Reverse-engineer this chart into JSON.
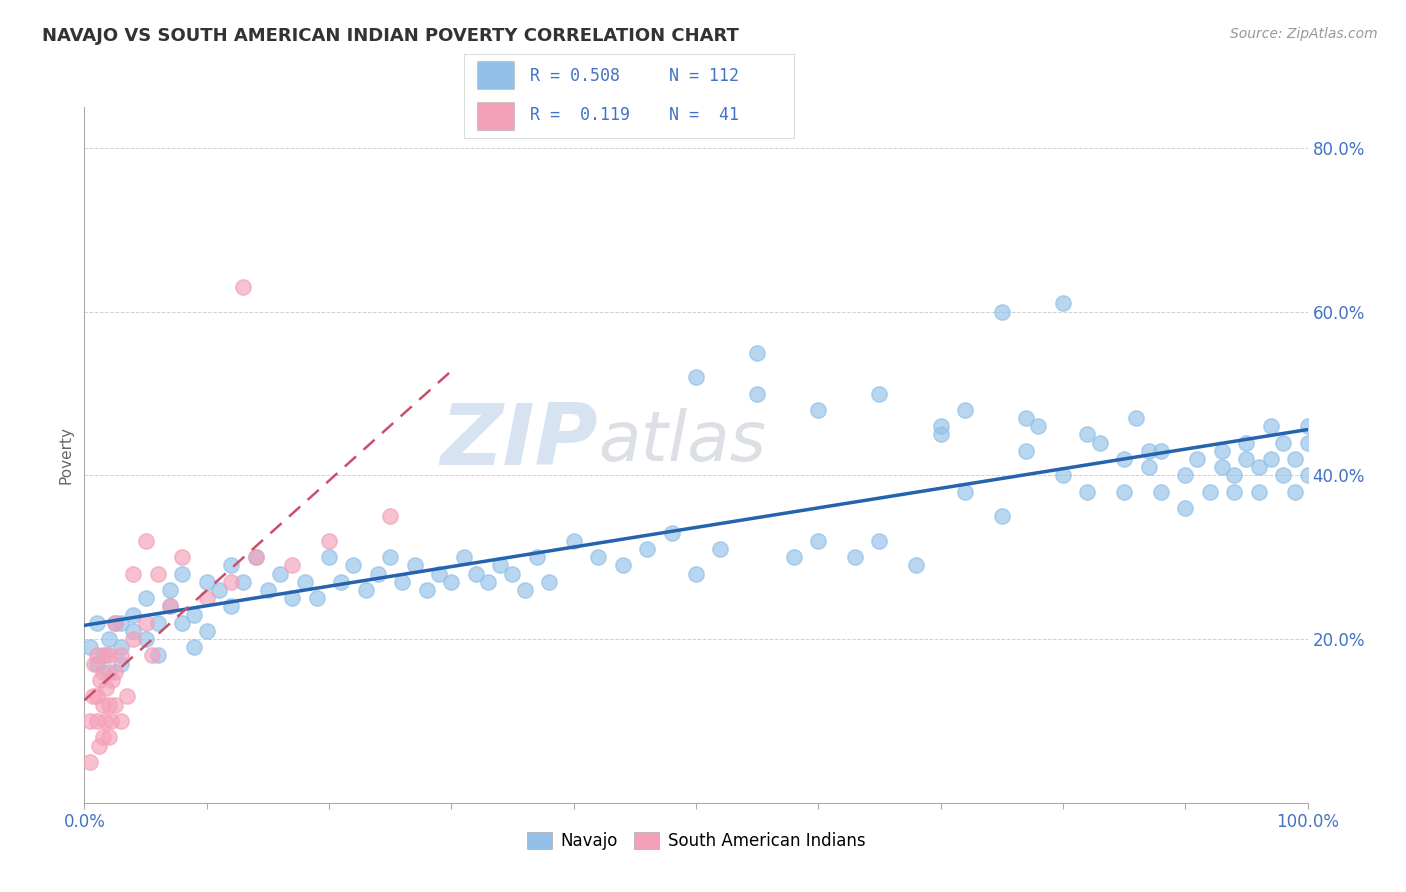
{
  "title": "NAVAJO VS SOUTH AMERICAN INDIAN POVERTY CORRELATION CHART",
  "source": "Source: ZipAtlas.com",
  "ylabel": "Poverty",
  "xlim": [
    0.0,
    1.0
  ],
  "ylim": [
    0.0,
    0.85
  ],
  "navajo_color": "#92C0E8",
  "south_american_color": "#F4A0B8",
  "navajo_R": 0.508,
  "navajo_N": 112,
  "south_american_R": 0.119,
  "south_american_N": 41,
  "trend_navajo_color": "#2563AE",
  "trend_south_american_color": "#C8506A",
  "background_color": "#ffffff",
  "watermark_color": "#C8D8EC",
  "tick_color": "#4472C4",
  "navajo_x": [
    0.005,
    0.01,
    0.01,
    0.015,
    0.02,
    0.02,
    0.025,
    0.03,
    0.03,
    0.03,
    0.04,
    0.04,
    0.05,
    0.05,
    0.06,
    0.06,
    0.07,
    0.07,
    0.08,
    0.08,
    0.09,
    0.09,
    0.1,
    0.1,
    0.11,
    0.12,
    0.12,
    0.13,
    0.14,
    0.15,
    0.16,
    0.17,
    0.18,
    0.19,
    0.2,
    0.21,
    0.22,
    0.23,
    0.24,
    0.25,
    0.26,
    0.27,
    0.28,
    0.29,
    0.3,
    0.31,
    0.32,
    0.33,
    0.34,
    0.35,
    0.36,
    0.37,
    0.38,
    0.4,
    0.42,
    0.44,
    0.46,
    0.48,
    0.5,
    0.52,
    0.55,
    0.58,
    0.6,
    0.63,
    0.65,
    0.68,
    0.7,
    0.72,
    0.75,
    0.77,
    0.78,
    0.8,
    0.82,
    0.83,
    0.85,
    0.85,
    0.87,
    0.88,
    0.88,
    0.9,
    0.9,
    0.91,
    0.92,
    0.93,
    0.93,
    0.94,
    0.94,
    0.95,
    0.95,
    0.96,
    0.96,
    0.97,
    0.97,
    0.98,
    0.98,
    0.99,
    0.99,
    1.0,
    1.0,
    1.0,
    0.75,
    0.8,
    0.55,
    0.5,
    0.6,
    0.65,
    0.7,
    0.72,
    0.77,
    0.82,
    0.86,
    0.87
  ],
  "navajo_y": [
    0.19,
    0.17,
    0.22,
    0.18,
    0.2,
    0.16,
    0.22,
    0.19,
    0.22,
    0.17,
    0.21,
    0.23,
    0.2,
    0.25,
    0.22,
    0.18,
    0.24,
    0.26,
    0.22,
    0.28,
    0.23,
    0.19,
    0.27,
    0.21,
    0.26,
    0.29,
    0.24,
    0.27,
    0.3,
    0.26,
    0.28,
    0.25,
    0.27,
    0.25,
    0.3,
    0.27,
    0.29,
    0.26,
    0.28,
    0.3,
    0.27,
    0.29,
    0.26,
    0.28,
    0.27,
    0.3,
    0.28,
    0.27,
    0.29,
    0.28,
    0.26,
    0.3,
    0.27,
    0.32,
    0.3,
    0.29,
    0.31,
    0.33,
    0.28,
    0.31,
    0.5,
    0.3,
    0.32,
    0.3,
    0.32,
    0.29,
    0.45,
    0.38,
    0.35,
    0.43,
    0.46,
    0.4,
    0.38,
    0.44,
    0.38,
    0.42,
    0.41,
    0.43,
    0.38,
    0.4,
    0.36,
    0.42,
    0.38,
    0.41,
    0.43,
    0.4,
    0.38,
    0.42,
    0.44,
    0.41,
    0.38,
    0.42,
    0.46,
    0.4,
    0.44,
    0.42,
    0.38,
    0.4,
    0.44,
    0.46,
    0.6,
    0.61,
    0.55,
    0.52,
    0.48,
    0.5,
    0.46,
    0.48,
    0.47,
    0.45,
    0.47,
    0.43
  ],
  "south_x": [
    0.005,
    0.005,
    0.007,
    0.008,
    0.01,
    0.01,
    0.01,
    0.012,
    0.013,
    0.015,
    0.015,
    0.015,
    0.017,
    0.018,
    0.018,
    0.02,
    0.02,
    0.02,
    0.022,
    0.023,
    0.025,
    0.025,
    0.025,
    0.03,
    0.03,
    0.035,
    0.04,
    0.04,
    0.05,
    0.05,
    0.055,
    0.06,
    0.07,
    0.08,
    0.1,
    0.12,
    0.14,
    0.17,
    0.2,
    0.25,
    0.13
  ],
  "south_y": [
    0.1,
    0.05,
    0.13,
    0.17,
    0.1,
    0.13,
    0.18,
    0.07,
    0.15,
    0.08,
    0.12,
    0.16,
    0.1,
    0.14,
    0.18,
    0.08,
    0.12,
    0.18,
    0.1,
    0.15,
    0.12,
    0.16,
    0.22,
    0.1,
    0.18,
    0.13,
    0.2,
    0.28,
    0.22,
    0.32,
    0.18,
    0.28,
    0.24,
    0.3,
    0.25,
    0.27,
    0.3,
    0.29,
    0.32,
    0.35,
    0.63
  ]
}
